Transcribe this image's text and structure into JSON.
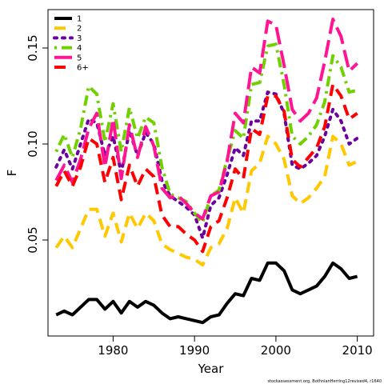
{
  "chart_data": {
    "type": "line",
    "title": "",
    "xlabel": "Year",
    "ylabel": "F",
    "xlim": [
      1972,
      2012
    ],
    "ylim": [
      0.0,
      0.17
    ],
    "x_ticks": [
      1980,
      1990,
      2000,
      2010
    ],
    "y_ticks": [
      0.05,
      0.1,
      0.15
    ],
    "y_tick_labels": [
      "0.05",
      "0.10",
      "0.15"
    ],
    "grid": false,
    "legend_position": "top-left",
    "x": [
      1973,
      1974,
      1975,
      1976,
      1977,
      1978,
      1979,
      1980,
      1981,
      1982,
      1983,
      1984,
      1985,
      1986,
      1987,
      1988,
      1989,
      1990,
      1991,
      1992,
      1993,
      1994,
      1995,
      1996,
      1997,
      1998,
      1999,
      2000,
      2001,
      2002,
      2003,
      2004,
      2005,
      2006,
      2007,
      2008,
      2009,
      2010
    ],
    "series": [
      {
        "name": "1",
        "color": "#000000",
        "dash": "solid",
        "values": [
          0.011,
          0.013,
          0.011,
          0.015,
          0.019,
          0.019,
          0.014,
          0.018,
          0.012,
          0.018,
          0.015,
          0.018,
          0.016,
          0.012,
          0.009,
          0.01,
          0.009,
          0.008,
          0.007,
          0.01,
          0.011,
          0.017,
          0.022,
          0.021,
          0.03,
          0.029,
          0.038,
          0.038,
          0.034,
          0.024,
          0.022,
          0.024,
          0.026,
          0.031,
          0.038,
          0.035,
          0.03,
          0.031
        ]
      },
      {
        "name": "2",
        "color": "#FFC800",
        "dash": "dashed",
        "values": [
          0.046,
          0.052,
          0.046,
          0.056,
          0.066,
          0.066,
          0.052,
          0.064,
          0.049,
          0.064,
          0.056,
          0.064,
          0.06,
          0.048,
          0.045,
          0.043,
          0.041,
          0.04,
          0.037,
          0.046,
          0.048,
          0.056,
          0.072,
          0.064,
          0.086,
          0.09,
          0.104,
          0.1,
          0.092,
          0.073,
          0.069,
          0.072,
          0.077,
          0.083,
          0.104,
          0.1,
          0.089,
          0.091
        ]
      },
      {
        "name": "3",
        "color": "#6A00A0",
        "dash": "dotted",
        "values": [
          0.088,
          0.097,
          0.087,
          0.1,
          0.113,
          0.111,
          0.094,
          0.104,
          0.085,
          0.107,
          0.094,
          0.106,
          0.1,
          0.081,
          0.073,
          0.07,
          0.067,
          0.063,
          0.051,
          0.068,
          0.072,
          0.084,
          0.098,
          0.094,
          0.112,
          0.112,
          0.127,
          0.126,
          0.116,
          0.089,
          0.087,
          0.09,
          0.094,
          0.104,
          0.118,
          0.112,
          0.1,
          0.103
        ]
      },
      {
        "name": "4",
        "color": "#70D000",
        "dash": "dotdash",
        "values": [
          0.096,
          0.105,
          0.093,
          0.108,
          0.13,
          0.126,
          0.101,
          0.121,
          0.096,
          0.119,
          0.103,
          0.114,
          0.111,
          0.088,
          0.074,
          0.072,
          0.07,
          0.064,
          0.059,
          0.073,
          0.076,
          0.092,
          0.107,
          0.103,
          0.131,
          0.132,
          0.151,
          0.152,
          0.131,
          0.104,
          0.1,
          0.104,
          0.11,
          0.122,
          0.146,
          0.14,
          0.127,
          0.128
        ]
      },
      {
        "name": "5",
        "color": "#FF1493",
        "dash": "longdash",
        "values": [
          0.081,
          0.089,
          0.08,
          0.092,
          0.108,
          0.116,
          0.088,
          0.113,
          0.082,
          0.11,
          0.093,
          0.109,
          0.099,
          0.077,
          0.072,
          0.073,
          0.069,
          0.064,
          0.061,
          0.073,
          0.075,
          0.091,
          0.116,
          0.111,
          0.14,
          0.137,
          0.164,
          0.162,
          0.141,
          0.118,
          0.112,
          0.116,
          0.124,
          0.143,
          0.165,
          0.156,
          0.138,
          0.142
        ]
      },
      {
        "name": "6+",
        "color": "#FF0000",
        "dash": "dashed",
        "values": [
          0.078,
          0.086,
          0.078,
          0.088,
          0.103,
          0.1,
          0.08,
          0.093,
          0.071,
          0.089,
          0.078,
          0.087,
          0.083,
          0.063,
          0.057,
          0.057,
          0.053,
          0.05,
          0.044,
          0.057,
          0.06,
          0.072,
          0.087,
          0.082,
          0.108,
          0.105,
          0.125,
          0.125,
          0.117,
          0.092,
          0.088,
          0.093,
          0.098,
          0.109,
          0.131,
          0.125,
          0.113,
          0.116
        ]
      }
    ]
  },
  "footer_note": "stockassessment.org, BothnianHerring12revised4, r1640"
}
